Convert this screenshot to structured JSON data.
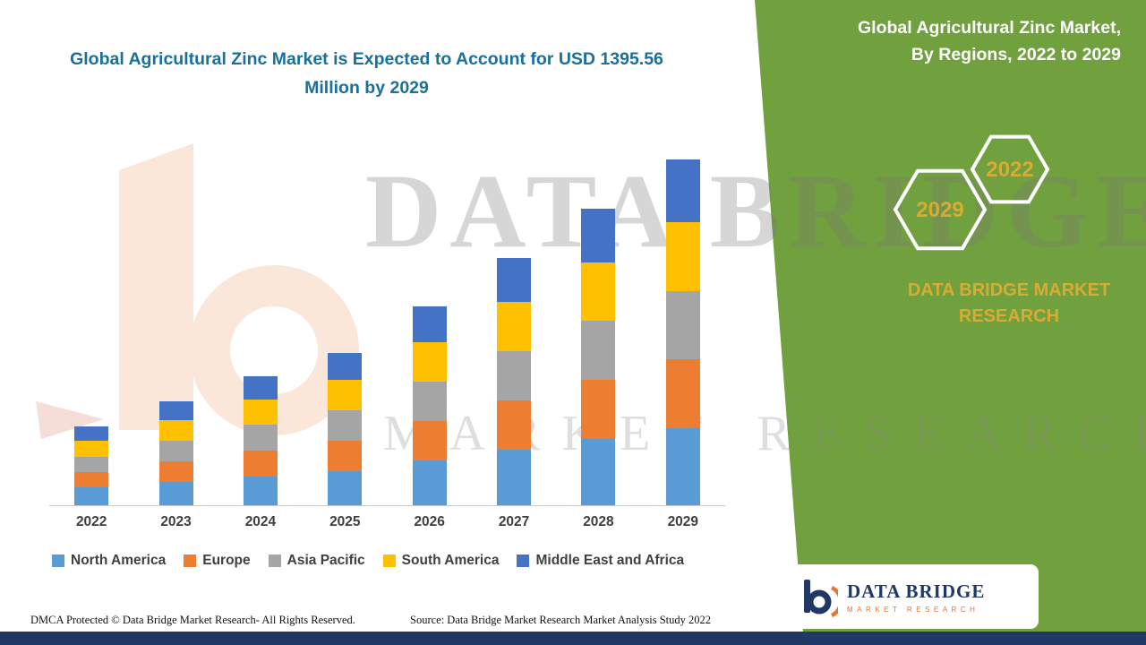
{
  "main_title": {
    "text": "Global Agricultural Zinc Market is Expected to Account for USD 1395.56 Million by 2029",
    "color": "#17719B"
  },
  "side_panel": {
    "background": "#71A03E",
    "heading_line1": "Global Agricultural Zinc Market,",
    "heading_line2": "By Regions, 2022 to 2029",
    "hexagon_labels": [
      "2029",
      "2022"
    ],
    "brand_line1": "DATA BRIDGE MARKET",
    "brand_line2": "RESEARCH",
    "accent_text_color": "#D8AC33"
  },
  "watermark": {
    "line1": "DATA BRIDGE",
    "line2": "MARKET RESEARCH"
  },
  "logo_card": {
    "title": "DATA BRIDGE",
    "subtitle": "MARKET RESEARCH"
  },
  "footer": {
    "dmca": "DMCA Protected © Data Bridge Market Research- All Rights Reserved.",
    "source": "Source: Data Bridge Market Research Market Analysis Study 2022",
    "strip_color": "#1F3864"
  },
  "chart_data": {
    "type": "bar",
    "stacked": true,
    "title": "Global Agricultural Zinc Market, By Regions, 2022 to 2029",
    "unit": "USD Million",
    "categories": [
      "2022",
      "2023",
      "2024",
      "2025",
      "2026",
      "2027",
      "2028",
      "2029"
    ],
    "series": [
      {
        "name": "North America",
        "color": "#5B9BD5",
        "values": [
          72,
          94,
          117,
          138,
          180,
          224,
          268,
          310
        ]
      },
      {
        "name": "Europe",
        "color": "#ED7D31",
        "values": [
          63,
          84,
          104,
          123,
          160,
          199,
          238,
          278
        ]
      },
      {
        "name": "Asia Pacific",
        "color": "#A5A5A5",
        "values": [
          62,
          83,
          103,
          122,
          159,
          198,
          237,
          277
        ]
      },
      {
        "name": "South America",
        "color": "#FFC000",
        "values": [
          62,
          83,
          103,
          122,
          159,
          198,
          237,
          277
        ]
      },
      {
        "name": "Middle East and Africa",
        "color": "#4472C4",
        "values": [
          58,
          75,
          94,
          111,
          144,
          179,
          215,
          253.56
        ]
      }
    ],
    "totals": [
      317,
      419,
      521,
      616,
      802,
      998,
      1195,
      1395.56
    ],
    "ylim": [
      0,
      1500
    ],
    "grid": false,
    "legend_position": "bottom"
  }
}
